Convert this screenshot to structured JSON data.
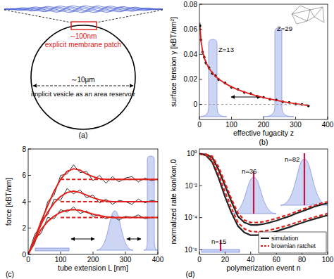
{
  "panel_a": {
    "label": "(a)",
    "patch_size": "∼100nm",
    "patch_label": "explicit membrane patch",
    "vesicle_size": "∼10μm",
    "vesicle_label": "implicit vesicle as an area reservoir"
  },
  "chart_data": [
    {
      "type": "scatter",
      "label": "(b)",
      "xlabel": "effective fugacity z",
      "ylabel": "surface tension γ [kBT/nm²]",
      "x": [
        2,
        5,
        10,
        15,
        20,
        30,
        40,
        50,
        60,
        80,
        100,
        120,
        140,
        160,
        180,
        200,
        220,
        240,
        260,
        280,
        300,
        320,
        340
      ],
      "xlim": [
        0,
        400
      ],
      "xticks": [
        0,
        100,
        200,
        300,
        400
      ],
      "ylim": [
        -0.012,
        0.08
      ],
      "yticks": [
        0,
        0.02,
        0.04,
        0.06,
        0.08
      ],
      "annotations": [
        "Z=13",
        "Z=29"
      ],
      "series": [
        {
          "type": "scatter",
          "color": "#000000",
          "marker": "circle",
          "values": [
            0.0628,
            0.0515,
            0.0418,
            0.0378,
            0.0333,
            0.0292,
            0.0249,
            0.0229,
            0.0199,
            0.0171,
            0.0137,
            0.0121,
            0.0096,
            0.0086,
            0.0065,
            0.0057,
            0.0041,
            0.0035,
            0.0021,
            0.0016,
            0.0004,
            0.0,
            -0.0012
          ],
          "errors": [
            0.0025,
            0.002,
            0.002,
            0.0018,
            0.0018,
            0.0015,
            0.0015,
            0.0014,
            0.0013,
            0.0012,
            0.0012,
            0.0011,
            0.0011,
            0.001,
            0.001,
            0.001,
            0.001,
            0.001,
            0.001,
            0.001,
            0.001,
            0.001,
            0.001
          ]
        },
        {
          "type": "line",
          "color": "#e0201b",
          "line_style": "solid",
          "values": [
            0.062,
            0.0508,
            0.0423,
            0.0373,
            0.0338,
            0.0288,
            0.0253,
            0.0225,
            0.0203,
            0.0168,
            0.014,
            0.0118,
            0.0099,
            0.0083,
            0.0068,
            0.0055,
            0.0044,
            0.0033,
            0.0023,
            0.0014,
            0.0006,
            -0.0002,
            -0.001
          ]
        },
        {
          "type": "line",
          "color": "#999999",
          "line_style": "dashed",
          "values": [
            0,
            0,
            0,
            0,
            0,
            0,
            0,
            0,
            0,
            0,
            0,
            0,
            0,
            0,
            0,
            0,
            0,
            0,
            0,
            0,
            0,
            0,
            0
          ]
        }
      ]
    },
    {
      "type": "line",
      "label": "(c)",
      "xlabel": "tube extension L [nm]",
      "ylabel": "force [kBT/nm]",
      "x": [
        0,
        20,
        40,
        60,
        80,
        100,
        120,
        140,
        160,
        180,
        200,
        220,
        240,
        260,
        280,
        300,
        320,
        340,
        360,
        380,
        400
      ],
      "xlim": [
        0,
        400
      ],
      "xticks": [
        0,
        100,
        200,
        300,
        400
      ],
      "ylim": [
        0,
        8
      ],
      "yticks": [
        0,
        2,
        4,
        6,
        8
      ],
      "series": [
        {
          "color": "#333333",
          "line_style": "solid",
          "values": [
            0,
            1.5,
            2.2,
            4.0,
            4.5,
            6.0,
            6.1,
            6.8,
            6.2,
            6.3,
            5.6,
            6.0,
            5.4,
            5.9,
            5.5,
            5.8,
            5.9,
            5.5,
            5.8,
            5.6,
            5.7
          ]
        },
        {
          "color": "#333333",
          "line_style": "solid",
          "values": [
            0,
            0.8,
            2.6,
            3.0,
            4.2,
            4.1,
            5.0,
            4.6,
            4.9,
            4.3,
            4.5,
            3.9,
            4.2,
            3.8,
            4.1,
            4.0,
            3.8,
            4.2,
            3.9,
            4.1,
            4.0
          ]
        },
        {
          "color": "#333333",
          "line_style": "solid",
          "values": [
            0,
            1.2,
            1.6,
            2.8,
            2.7,
            3.4,
            3.2,
            3.6,
            3.1,
            3.3,
            2.9,
            3.0,
            2.7,
            2.9,
            2.6,
            2.9,
            2.8,
            3.0,
            2.7,
            2.8,
            2.8
          ]
        },
        {
          "color": "#e0201b",
          "line_style": "solid",
          "values": [
            0,
            1.2,
            2.5,
            3.7,
            4.8,
            5.7,
            6.3,
            6.5,
            6.4,
            6.1,
            5.9,
            5.75,
            5.7,
            5.7,
            5.7,
            5.7,
            5.7,
            5.7,
            5.7,
            5.7,
            5.7
          ]
        },
        {
          "color": "#e0201b",
          "line_style": "solid",
          "values": [
            0,
            1.1,
            2.3,
            3.2,
            3.9,
            4.4,
            4.7,
            4.8,
            4.7,
            4.5,
            4.3,
            4.15,
            4.05,
            4.0,
            4.0,
            4.0,
            4.0,
            4.0,
            4.0,
            4.0,
            4.0
          ]
        },
        {
          "color": "#e0201b",
          "line_style": "solid",
          "values": [
            0,
            1.0,
            1.9,
            2.5,
            2.9,
            3.2,
            3.35,
            3.4,
            3.35,
            3.2,
            3.05,
            2.95,
            2.85,
            2.8,
            2.8,
            2.8,
            2.8,
            2.8,
            2.8,
            2.8,
            2.8
          ]
        },
        {
          "color": "#e0201b",
          "line_style": "dashed",
          "values": [
            null,
            null,
            null,
            null,
            null,
            5.7,
            5.7,
            5.7,
            5.7,
            5.7,
            5.7,
            5.7,
            5.7,
            5.7,
            5.7,
            5.7,
            5.7,
            5.7,
            5.7,
            5.7,
            5.7
          ]
        },
        {
          "color": "#e0201b",
          "line_style": "dashed",
          "values": [
            null,
            null,
            null,
            null,
            null,
            4.0,
            4.0,
            4.0,
            4.0,
            4.0,
            4.0,
            4.0,
            4.0,
            4.0,
            4.0,
            4.0,
            4.0,
            4.0,
            4.0,
            4.0,
            4.0
          ]
        },
        {
          "color": "#e0201b",
          "line_style": "dashed",
          "values": [
            null,
            null,
            null,
            null,
            null,
            2.8,
            2.8,
            2.8,
            2.8,
            2.8,
            2.8,
            2.8,
            2.8,
            2.8,
            2.8,
            2.8,
            2.8,
            2.8,
            2.8,
            2.8,
            2.8
          ]
        }
      ]
    },
    {
      "type": "line",
      "label": "(d)",
      "xlabel": "polymerization event n",
      "ylabel": "normalized rate kon/kon,0",
      "log": "y",
      "legend": "lower right",
      "x": [
        0,
        5,
        10,
        15,
        20,
        25,
        30,
        35,
        40,
        45,
        50,
        55,
        60,
        65,
        70,
        75,
        80,
        85,
        90,
        95,
        100
      ],
      "xlim": [
        0,
        100
      ],
      "xticks": [
        0,
        20,
        40,
        60,
        80,
        100
      ],
      "ylim": [
        5e-07,
        2
      ],
      "yticks": [
        {
          "value": 1,
          "label": "10⁰"
        },
        {
          "value": 0.01,
          "label": "10⁻²"
        },
        {
          "value": 0.0001,
          "label": "10⁻⁴"
        },
        {
          "value": 1e-06,
          "label": "10⁻⁶"
        }
      ],
      "annotations": [
        "n=15",
        "n=36",
        "n=82"
      ],
      "series": [
        {
          "name": "simulation",
          "color": "#222222",
          "line_style": "solid",
          "values": [
            1,
            0.9,
            0.6,
            0.1,
            0.01,
            0.001,
            0.00012,
            5e-05,
            3.5e-05,
            3.5e-05,
            4e-05,
            5e-05,
            6.5e-05,
            9e-05,
            0.00012,
            0.00018,
            0.00025,
            0.00035,
            0.0005,
            0.00065,
            0.0008
          ]
        },
        {
          "name": "brownian ratchet",
          "color": "#e0201b",
          "line_style": "dashed",
          "values": [
            1,
            0.95,
            0.7,
            0.15,
            0.015,
            0.0015,
            0.0002,
            7e-05,
            5e-05,
            5e-05,
            5.5e-05,
            7e-05,
            9e-05,
            0.00012,
            0.00016,
            0.00023,
            0.00032,
            0.00045,
            0.0006,
            0.0008,
            0.001
          ]
        },
        {
          "color": "#222222",
          "line_style": "solid",
          "values": [
            1,
            0.8,
            0.3,
            0.03,
            0.002,
            0.0002,
            3e-05,
            1.2e-05,
            8e-06,
            8e-06,
            9e-06,
            1.1e-05,
            1.4e-05,
            1.9e-05,
            2.5e-05,
            3.5e-05,
            4.8e-05,
            6.5e-05,
            8.5e-05,
            0.00011,
            0.00014
          ]
        },
        {
          "color": "#e0201b",
          "line_style": "dashed",
          "values": [
            1,
            0.85,
            0.4,
            0.05,
            0.004,
            0.0004,
            5e-05,
            2e-05,
            1.4e-05,
            1.3e-05,
            1.4e-05,
            1.7e-05,
            2.1e-05,
            2.7e-05,
            3.5e-05,
            4.8e-05,
            6.5e-05,
            8.5e-05,
            0.00011,
            0.00014,
            0.00018
          ]
        }
      ]
    }
  ]
}
